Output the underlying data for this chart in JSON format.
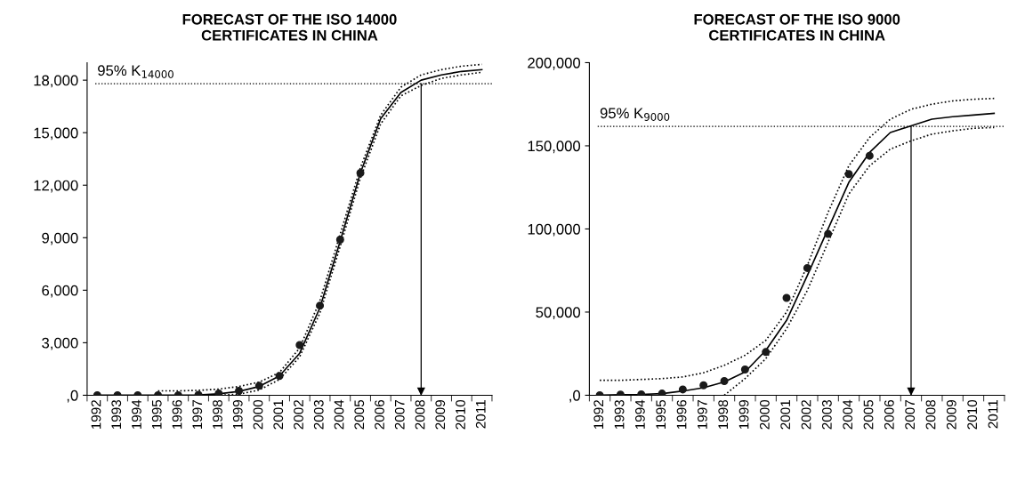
{
  "chart_data": [
    {
      "type": "line",
      "title": "FORECAST OF THE ISO 14000\nCERTIFICATES IN CHINA",
      "categories": [
        "1992",
        "1993",
        "1994",
        "1995",
        "1996",
        "1997",
        "1998",
        "1999",
        "2000",
        "2001",
        "2002",
        "2003",
        "2004",
        "2005",
        "2006",
        "2007",
        "2008",
        "2009",
        "2010",
        "2011"
      ],
      "series": [
        {
          "color": "#000000",
          "line_style": "dotted",
          "values": [
            null,
            null,
            null,
            250,
            250,
            280,
            350,
            500,
            750,
            1300,
            2700,
            5400,
            9200,
            13000,
            16000,
            17600,
            18300,
            18600,
            18800,
            18900
          ]
        },
        {
          "color": "#000000",
          "line_style": "dotted",
          "values": [
            null,
            null,
            null,
            null,
            null,
            0,
            0,
            60,
            300,
            900,
            2200,
            4700,
            8500,
            12400,
            15500,
            17100,
            17700,
            18100,
            18300,
            18450
          ]
        },
        {
          "color": "#000000",
          "line_style": "solid",
          "values": [
            0,
            0,
            0,
            0,
            0,
            20,
            80,
            220,
            500,
            1100,
            2400,
            5000,
            8800,
            12700,
            15800,
            17300,
            18000,
            18300,
            18500,
            18600
          ]
        },
        {
          "type": "scatter",
          "color": "#1a1a1a",
          "marker": "circle",
          "values": [
            0,
            0,
            0,
            0,
            0,
            20,
            100,
            250,
            540,
            1100,
            2870,
            5120,
            8890,
            12700,
            null,
            null,
            null,
            null,
            null,
            null
          ]
        }
      ],
      "ylim": [
        0,
        19000
      ],
      "yticks": [
        {
          "value": 0,
          "label": ",0"
        },
        {
          "value": 3000,
          "label": "3,000"
        },
        {
          "value": 6000,
          "label": "6,000"
        },
        {
          "value": 9000,
          "label": "9,000"
        },
        {
          "value": 12000,
          "label": "12,000"
        },
        {
          "value": 15000,
          "label": "15,000"
        },
        {
          "value": 18000,
          "label": "18,000"
        }
      ],
      "ref_lines": [
        {
          "axis": "y",
          "value": 17800,
          "label": "95% K$_{14000}$",
          "line_style": "dotted",
          "color": "#000000"
        },
        {
          "axis": "x",
          "value": "2008",
          "color": "#000000",
          "line_style": "solid"
        }
      ],
      "grid": false,
      "legend": false
    },
    {
      "type": "line",
      "title": "FORECAST OF THE ISO 9000\nCERTIFICATES IN CHINA",
      "categories": [
        "1992",
        "1993",
        "1994",
        "1995",
        "1996",
        "1997",
        "1998",
        "1999",
        "2000",
        "2001",
        "2002",
        "2003",
        "2004",
        "2005",
        "2006",
        "2007",
        "2008",
        "2009",
        "2010",
        "2011"
      ],
      "series": [
        {
          "color": "#000000",
          "line_style": "dotted",
          "values": [
            9000,
            9000,
            9500,
            10000,
            11000,
            13500,
            18000,
            24000,
            33000,
            50000,
            78000,
            110000,
            138000,
            155000,
            166000,
            172000,
            175000,
            177000,
            178000,
            178500
          ]
        },
        {
          "color": "#000000",
          "line_style": "dotted",
          "values": [
            null,
            null,
            null,
            null,
            null,
            null,
            0,
            10000,
            22000,
            40000,
            63000,
            92000,
            121000,
            138000,
            148000,
            153000,
            157000,
            159000,
            160500,
            161000
          ]
        },
        {
          "color": "#000000",
          "line_style": "solid",
          "values": [
            0,
            300,
            500,
            1000,
            2500,
            4500,
            8000,
            14000,
            27000,
            45000,
            72000,
            100000,
            128000,
            146000,
            158000,
            162000,
            166000,
            167500,
            168500,
            169500
          ]
        },
        {
          "type": "scatter",
          "color": "#1a1a1a",
          "marker": "circle",
          "values": [
            0,
            400,
            500,
            1000,
            3500,
            6000,
            8500,
            15500,
            26000,
            58500,
            76500,
            97000,
            133000,
            144000,
            null,
            null,
            null,
            null,
            null,
            null
          ]
        }
      ],
      "ylim": [
        0,
        200000
      ],
      "yticks": [
        {
          "value": 0,
          "label": ",0"
        },
        {
          "value": 50000,
          "label": "50,000"
        },
        {
          "value": 100000,
          "label": "100,000"
        },
        {
          "value": 150000,
          "label": "150,000"
        },
        {
          "value": 200000,
          "label": "200,000"
        }
      ],
      "ref_lines": [
        {
          "axis": "y",
          "value": 161700,
          "label": "95% K$_{9000}$",
          "line_style": "dotted",
          "color": "#000000"
        },
        {
          "axis": "x",
          "value": "2007",
          "color": "#000000",
          "line_style": "solid"
        }
      ],
      "grid": false,
      "legend": false
    }
  ]
}
